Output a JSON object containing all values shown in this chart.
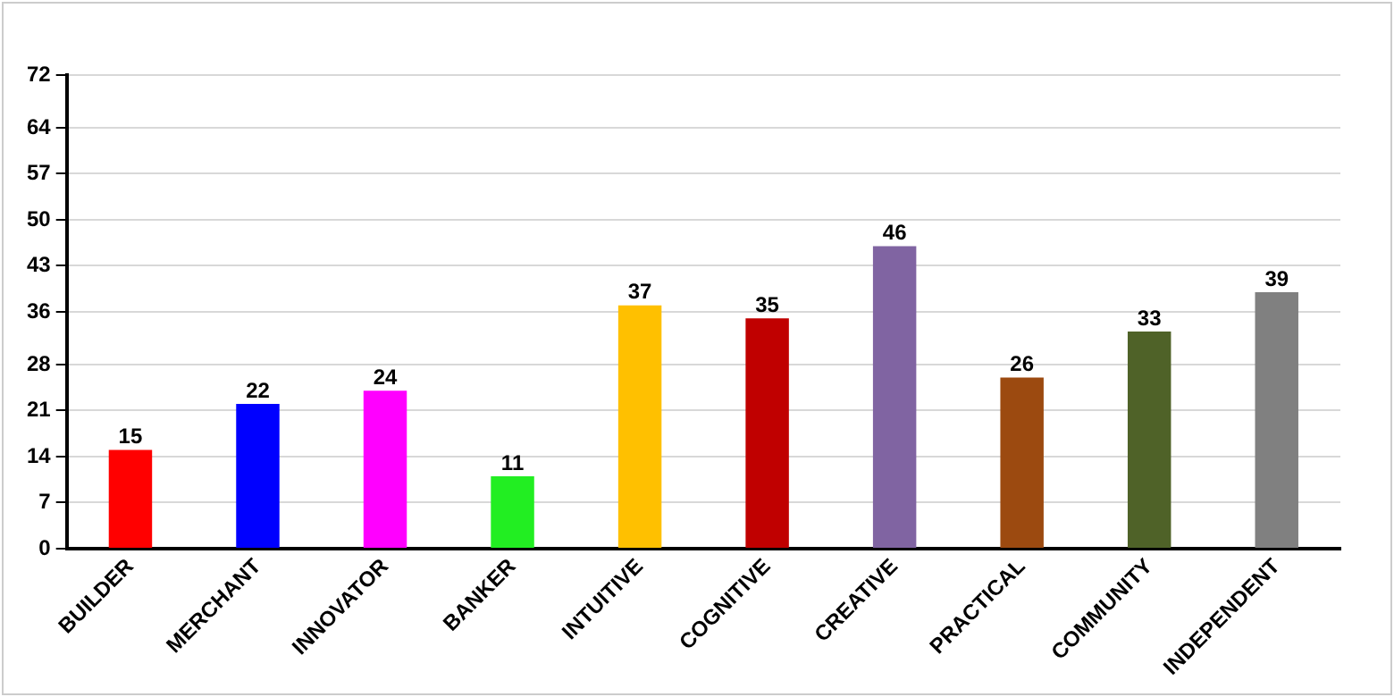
{
  "chart_data": {
    "type": "bar",
    "categories": [
      "BUILDER",
      "MERCHANT",
      "INNOVATOR",
      "BANKER",
      "INTUITIVE",
      "COGNITIVE",
      "CREATIVE",
      "PRACTICAL",
      "COMMUNITY",
      "INDEPENDENT"
    ],
    "values": [
      15,
      22,
      24,
      11,
      37,
      35,
      46,
      26,
      33,
      39
    ],
    "colors": [
      "#ff0000",
      "#0000ff",
      "#ff00ff",
      "#22ee22",
      "#ffc000",
      "#c00000",
      "#8064a2",
      "#9c4a10",
      "#4f6228",
      "#808080"
    ],
    "ylim": [
      0,
      72
    ],
    "yticks": [
      0,
      7,
      14,
      21,
      28,
      36,
      43,
      50,
      57,
      64,
      72
    ],
    "grid": "y",
    "legend": false,
    "data_labels": true
  }
}
